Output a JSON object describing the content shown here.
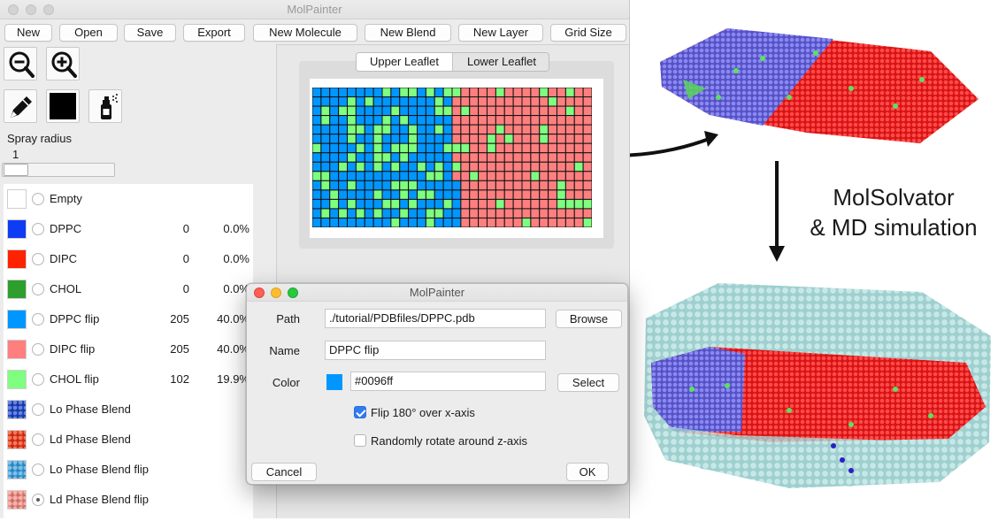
{
  "main_window": {
    "title": "MolPainter",
    "toolbar": [
      "New",
      "Open",
      "Save",
      "Export",
      "New Molecule",
      "New Blend",
      "New Layer",
      "Grid Size"
    ],
    "tools": {
      "zoom_out": "zoom-out-icon",
      "zoom_in": "zoom-in-icon",
      "pencil": "pencil-icon",
      "color": "#000000",
      "spray": "spray-can-icon"
    },
    "spray": {
      "label": "Spray radius",
      "value": "1",
      "slider_fraction": 0.0
    },
    "molecules": [
      {
        "name": "Empty",
        "color": "#ffffff",
        "count": "",
        "pct": "",
        "selected": false
      },
      {
        "name": "DPPC",
        "color": "#0f3bf5",
        "count": "0",
        "pct": "0.0%",
        "selected": false
      },
      {
        "name": "DIPC",
        "color": "#ff2200",
        "count": "0",
        "pct": "0.0%",
        "selected": false
      },
      {
        "name": "CHOL",
        "color": "#2e9e2e",
        "count": "0",
        "pct": "0.0%",
        "selected": false
      },
      {
        "name": "DPPC flip",
        "color": "#0096ff",
        "count": "205",
        "pct": "40.0%",
        "selected": false
      },
      {
        "name": "DIPC flip",
        "color": "#ff7f7f",
        "count": "205",
        "pct": "40.0%",
        "selected": false
      },
      {
        "name": "CHOL flip",
        "color": "#7fff7f",
        "count": "102",
        "pct": "19.9%",
        "selected": false
      },
      {
        "name": "Lo Phase Blend",
        "color": "#1a44c8",
        "count": "",
        "pct": "",
        "selected": false
      },
      {
        "name": "Ld Phase Blend",
        "color": "#ee3311",
        "count": "",
        "pct": "",
        "selected": false
      },
      {
        "name": "Lo Phase Blend flip",
        "color": "#3aa0e0",
        "count": "",
        "pct": "",
        "selected": false
      },
      {
        "name": "Ld Phase Blend flip",
        "color": "#f48a80",
        "count": "",
        "pct": "",
        "selected": true
      }
    ],
    "leaflet_tabs": {
      "upper": "Upper Leaflet",
      "lower": "Lower Leaflet",
      "active": "Upper Leaflet"
    },
    "grid": {
      "columns": 32,
      "rows": 15,
      "split_column": 16,
      "blue": "#0096ff",
      "red": "#ff7f7f",
      "green": "#7fff7f"
    }
  },
  "dialog": {
    "title": "MolPainter",
    "path_label": "Path",
    "path_value": "./tutorial/PDBfiles/DPPC.pdb",
    "browse_label": "Browse",
    "name_label": "Name",
    "name_value": "DPPC flip",
    "color_label": "Color",
    "color_value": "#0096ff",
    "select_label": "Select",
    "flip_label": "Flip 180° over x-axis",
    "flip_checked": true,
    "rotate_label": "Randomly rotate around z-axis",
    "rotate_checked": false,
    "cancel_label": "Cancel",
    "ok_label": "OK"
  },
  "caption": {
    "line1": "MolSolvator",
    "line2": "& MD simulation"
  }
}
